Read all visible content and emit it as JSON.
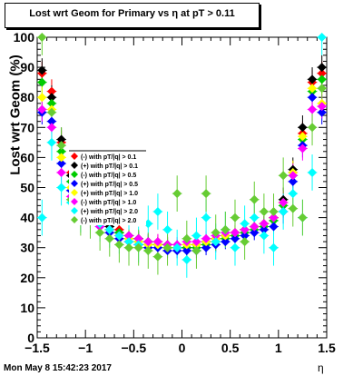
{
  "title": "Lost wrt Geom for Primary vs   η at pT > 0.11",
  "footer": "Mon May  8 15:42:23 2017",
  "chart_data": {
    "type": "scatter",
    "xlabel": "η",
    "ylabel": "Lost wrt Geom (%)",
    "xlim": [
      -1.5,
      1.5
    ],
    "ylim": [
      0,
      100
    ],
    "x_ticks": [
      "−1.5",
      "−1",
      "−0.5",
      "0",
      "0.5",
      "1",
      "1.5"
    ],
    "y_ticks": [
      "0",
      "10",
      "20",
      "30",
      "40",
      "50",
      "60",
      "70",
      "80",
      "90",
      "100"
    ],
    "legend_position": "middle-left",
    "x": [
      -1.45,
      -1.35,
      -1.25,
      -1.15,
      -1.05,
      -0.95,
      -0.85,
      -0.75,
      -0.65,
      -0.55,
      -0.45,
      -0.35,
      -0.25,
      -0.15,
      -0.05,
      0.05,
      0.15,
      0.25,
      0.35,
      0.45,
      0.55,
      0.65,
      0.75,
      0.85,
      0.95,
      1.05,
      1.15,
      1.25,
      1.35,
      1.45
    ],
    "series": [
      {
        "name": "(-) with pT/|q| > 0.1",
        "color": "#ff0000",
        "values": [
          88,
          82,
          65,
          55,
          47,
          42,
          40,
          38,
          36,
          34,
          33,
          32,
          32,
          31,
          30,
          30,
          31,
          32,
          33,
          34,
          35,
          36,
          37,
          38,
          40,
          45,
          55,
          68,
          85,
          88
        ]
      },
      {
        "name": "(+) with pT/|q| > 0.1",
        "color": "#000000",
        "values": [
          89,
          80,
          66,
          54,
          46,
          42,
          39,
          37,
          35,
          34,
          33,
          32,
          31,
          31,
          30,
          30,
          31,
          32,
          33,
          34,
          35,
          36,
          37,
          38,
          40,
          46,
          56,
          70,
          86,
          90
        ]
      },
      {
        "name": "(-) with pT/|q| > 0.5",
        "color": "#00cc00",
        "values": [
          85,
          78,
          62,
          52,
          45,
          41,
          39,
          36,
          35,
          33,
          32,
          31,
          31,
          30,
          30,
          30,
          30,
          31,
          32,
          33,
          34,
          35,
          36,
          37,
          39,
          44,
          54,
          66,
          82,
          86
        ]
      },
      {
        "name": "(+) with pT/|q| > 0.5",
        "color": "#0000ff",
        "values": [
          75,
          72,
          58,
          49,
          42,
          39,
          37,
          35,
          33,
          32,
          31,
          30,
          30,
          29,
          29,
          29,
          29,
          30,
          31,
          32,
          33,
          34,
          35,
          36,
          37,
          42,
          52,
          64,
          80,
          75
        ]
      },
      {
        "name": "(+) with pT/|q| > 1.0",
        "color": "#ffff00",
        "values": [
          80,
          76,
          60,
          50,
          44,
          40,
          38,
          36,
          34,
          33,
          32,
          31,
          31,
          30,
          30,
          31,
          31,
          32,
          33,
          34,
          35,
          36,
          37,
          38,
          40,
          45,
          55,
          67,
          83,
          78
        ]
      },
      {
        "name": "(-) with pT/|q| > 1.0",
        "color": "#ff00ff",
        "values": [
          76,
          70,
          55,
          47,
          42,
          39,
          37,
          36,
          34,
          34,
          33,
          32,
          32,
          31,
          31,
          32,
          32,
          33,
          34,
          35,
          35,
          36,
          37,
          38,
          40,
          45,
          54,
          63,
          76,
          77
        ]
      },
      {
        "name": "(+) with pT/|q| > 2.0",
        "color": "#00ffff",
        "values": [
          40,
          65,
          50,
          45,
          41,
          40,
          38,
          36,
          34,
          32,
          31,
          38,
          42,
          36,
          30,
          26,
          34,
          40,
          32,
          36,
          30,
          38,
          40,
          34,
          30,
          42,
          48,
          40,
          55,
          100
        ]
      },
      {
        "name": "(-) with pT/|q| > 2.0",
        "color": "#66cc33",
        "values": [
          100,
          75,
          64,
          46,
          40,
          39,
          35,
          33,
          31,
          30,
          30,
          29,
          27,
          30,
          48,
          33,
          29,
          48,
          35,
          36,
          40,
          32,
          46,
          42,
          42,
          54,
          43,
          40,
          70,
          83
        ]
      }
    ]
  }
}
